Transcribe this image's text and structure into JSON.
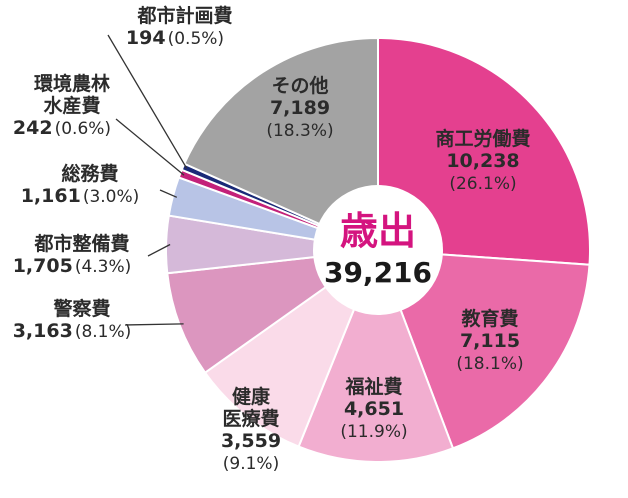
{
  "chart_data": {
    "type": "pie",
    "center_title": "歳出",
    "center_total": "39,216",
    "slices": [
      {
        "name": "商工労働費",
        "value": 10238,
        "value_label": "10,238",
        "percent_label": "(26.1%)",
        "color": "#e4408f"
      },
      {
        "name": "教育費",
        "value": 7115,
        "value_label": "7,115",
        "percent_label": "(18.1%)",
        "color": "#ea6aa8"
      },
      {
        "name": "福祉費",
        "value": 4651,
        "value_label": "4,651",
        "percent_label": "(11.9%)",
        "color": "#f2aed0"
      },
      {
        "name": "健康医療費",
        "value": 3559,
        "value_label": "3,559",
        "percent_label": "(9.1%)",
        "color": "#fadbe9"
      },
      {
        "name": "警察費",
        "value": 3163,
        "value_label": "3,163",
        "percent_label": "(8.1%)",
        "color": "#dc96bf"
      },
      {
        "name": "都市整備費",
        "value": 1705,
        "value_label": "1,705",
        "percent_label": "(4.3%)",
        "color": "#d5b9d9"
      },
      {
        "name": "総務費",
        "value": 1161,
        "value_label": "1,161",
        "percent_label": "(3.0%)",
        "color": "#b8c4e6"
      },
      {
        "name": "環境農林水産費",
        "value": 242,
        "value_label": "242",
        "percent_label": "(0.6%)",
        "color": "#c3217a"
      },
      {
        "name": "都市計画費",
        "value": 194,
        "value_label": "194",
        "percent_label": "(0.5%)",
        "color": "#1a2a78"
      },
      {
        "name": "その他",
        "value": 7189,
        "value_label": "7,189",
        "percent_label": "(18.3%)",
        "color": "#a3a3a3"
      }
    ],
    "outside_label_lines": {
      "環境農林水産費": [
        "環境農林",
        "水産費"
      ],
      "健康医療費": [
        "健康",
        "医療費"
      ]
    }
  }
}
